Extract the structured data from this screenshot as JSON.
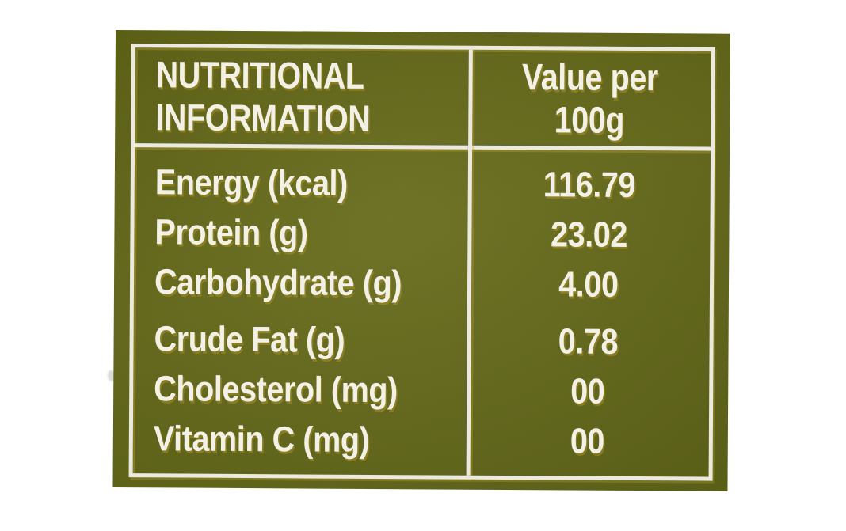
{
  "label": {
    "header": {
      "product_col_line1": "NUTRITIONAL",
      "product_col_line2": "INFORMATION",
      "value_col_line1": "Value per",
      "value_col_line2": "100g"
    },
    "rows": [
      {
        "name": "Energy (kcal)",
        "value": "116.79"
      },
      {
        "name": "Protein (g)",
        "value": "23.02"
      },
      {
        "name": "Carbohydrate (g)",
        "value": "4.00"
      },
      {
        "name": "Crude Fat (g)",
        "value": "0.78"
      },
      {
        "name": "Cholesterol (mg)",
        "value": "00"
      },
      {
        "name": "Vitamin C (mg)",
        "value": "00"
      }
    ],
    "colors": {
      "panel_green": "#676c1c",
      "line_white": "#eceade",
      "text_white": "#f3f1e6",
      "print_offset_yellow": "#c8a62f",
      "photo_background": "#ffffff"
    }
  }
}
